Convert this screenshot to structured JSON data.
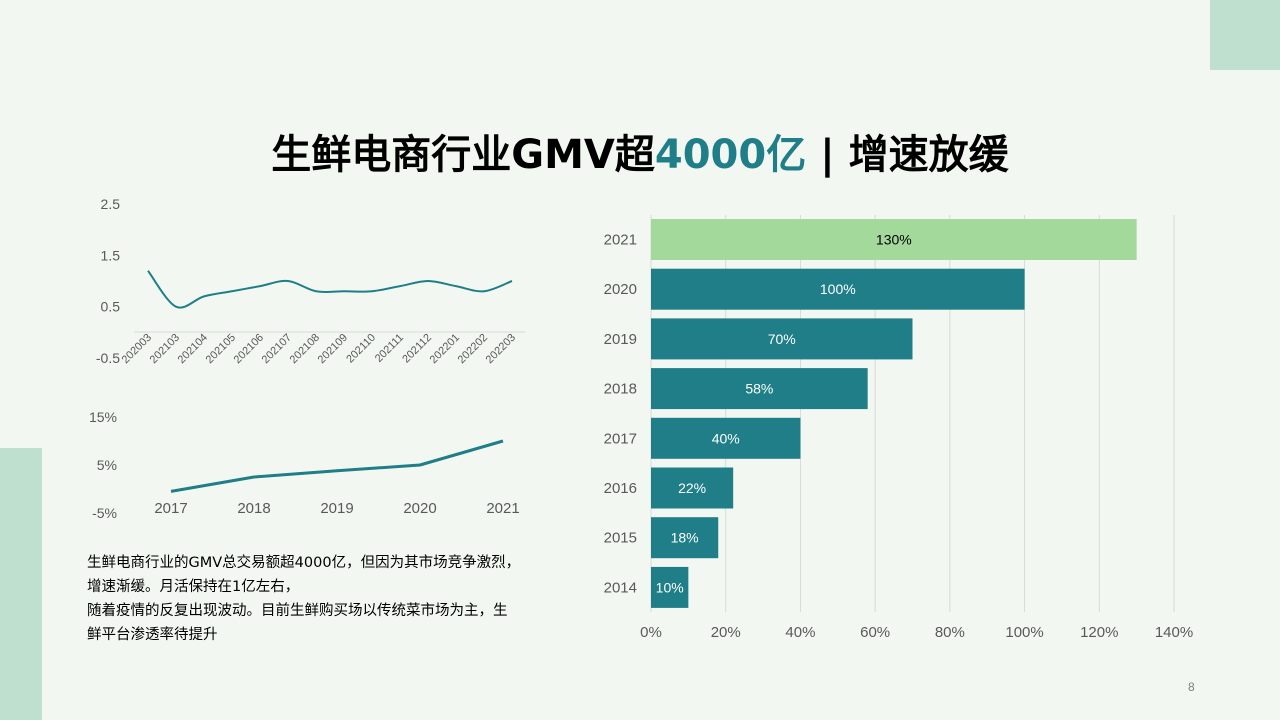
{
  "slide": {
    "title_main": "生鲜电商行业GMV超",
    "title_highlight": "4000亿",
    "title_rest": " | 增速放缓",
    "page_number": "8",
    "description": [
      "生鲜电商行业的GMV总交易额超4000亿，但因为其市场竞争激烈，",
      "增速渐缓。月活保持在1亿左右，",
      "随着疫情的反复出现波动。目前生鲜购买场以传统菜市场为主，生",
      "鲜平台渗透率待提升"
    ],
    "colors": {
      "teal": "#1f7e87",
      "light_green": "#a3d99b",
      "decoration": "#bfe0cf",
      "background": "#f2f8f1"
    }
  },
  "chart_data": [
    {
      "type": "line",
      "x": [
        "202003",
        "202103",
        "202104",
        "202105",
        "202106",
        "202107",
        "202108",
        "202109",
        "202110",
        "202111",
        "202112",
        "202201",
        "202202",
        "202203"
      ],
      "values": [
        1.2,
        0.5,
        0.7,
        0.8,
        0.9,
        1.0,
        0.8,
        0.8,
        0.8,
        0.9,
        1.0,
        0.9,
        0.8,
        1.0
      ],
      "ylim": [
        -0.5,
        2.5
      ],
      "yticks": [
        "2.5",
        "1.5",
        "0.5",
        "-0.5"
      ],
      "grid": false
    },
    {
      "type": "line",
      "x": [
        "2017",
        "2018",
        "2019",
        "2020",
        "2021"
      ],
      "values": [
        -0.5,
        2.5,
        3.8,
        5.0,
        10.0
      ],
      "ylim": [
        -5,
        15
      ],
      "yticks": [
        "15%",
        "5%",
        "-5%"
      ],
      "grid": false
    },
    {
      "type": "bar",
      "orientation": "horizontal",
      "categories": [
        "2021",
        "2020",
        "2019",
        "2018",
        "2017",
        "2016",
        "2015",
        "2014"
      ],
      "values": [
        130,
        100,
        70,
        58,
        40,
        22,
        18,
        10
      ],
      "labels": [
        "130%",
        "100%",
        "70%",
        "58%",
        "40%",
        "22%",
        "18%",
        "10%"
      ],
      "xlim": [
        0,
        140
      ],
      "xticks": [
        "0%",
        "20%",
        "40%",
        "60%",
        "80%",
        "100%",
        "120%",
        "140%"
      ],
      "grid": true
    }
  ]
}
